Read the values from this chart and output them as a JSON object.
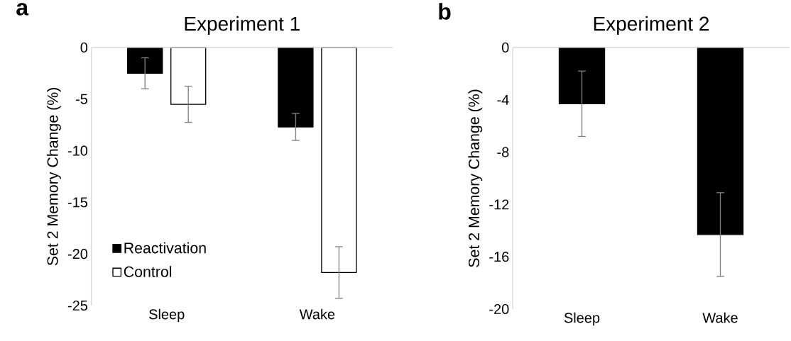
{
  "chart_data": [
    {
      "type": "bar",
      "title": "Experiment 1",
      "ylabel": "Set 2 Memory Change (%)",
      "categories": [
        "Sleep",
        "Wake"
      ],
      "series": [
        {
          "name": "Reactivation",
          "color": "#000000",
          "values": [
            -2.5,
            -7.7
          ],
          "errors": [
            1.5,
            1.3
          ]
        },
        {
          "name": "Control",
          "color": "#ffffff",
          "values": [
            -5.5,
            -21.8
          ],
          "errors": [
            1.75,
            2.5
          ]
        }
      ],
      "ylim": [
        -25,
        0
      ],
      "yticks": [
        0,
        -5,
        -10,
        -15,
        -20,
        -25
      ],
      "legend": "bottom left",
      "annotations": [
        "a"
      ]
    },
    {
      "type": "bar",
      "title": "Experiment 2",
      "ylabel": "Set 2 Memory Change (%)",
      "categories": [
        "Sleep",
        "Wake"
      ],
      "series": [
        {
          "color": "#000000",
          "values": [
            -4.3,
            -14.3
          ],
          "errors": [
            2.5,
            3.2
          ]
        }
      ],
      "ylim": [
        -20,
        0
      ],
      "yticks": [
        0,
        -4,
        -8,
        -12,
        -16,
        -20
      ],
      "annotations": [
        "b"
      ]
    }
  ]
}
